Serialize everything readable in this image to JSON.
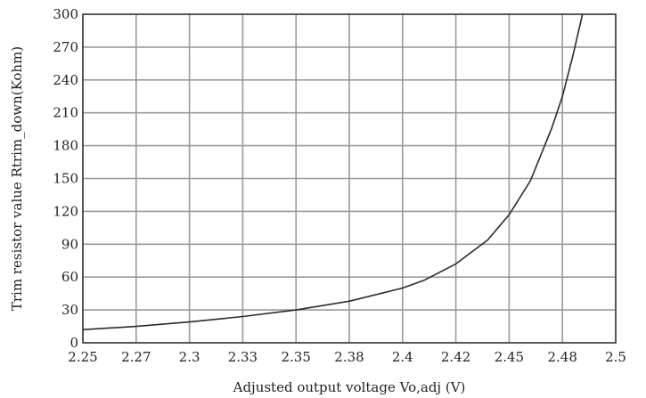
{
  "chart_data": {
    "type": "line",
    "title": "",
    "xlabel": "Adjusted output voltage Vo,adj (V)",
    "ylabel": "Trim resistor value Rtrim_down(Kohm)",
    "xlim": [
      2.25,
      2.5
    ],
    "ylim": [
      0,
      300
    ],
    "grid": true,
    "x_ticks": [
      2.25,
      2.275,
      2.3,
      2.325,
      2.35,
      2.375,
      2.4,
      2.425,
      2.45,
      2.475,
      2.5
    ],
    "x_tick_labels": [
      "2.25",
      "2.27",
      "2.3",
      "2.33",
      "2.35",
      "2.38",
      "2.4",
      "2.42",
      "2.45",
      "2.48",
      "2.5"
    ],
    "y_ticks": [
      0,
      30,
      60,
      90,
      120,
      150,
      180,
      210,
      240,
      270,
      300
    ],
    "y_tick_labels": [
      "0",
      "30",
      "60",
      "90",
      "120",
      "150",
      "180",
      "210",
      "240",
      "270",
      "300"
    ],
    "series": [
      {
        "name": "",
        "color": "#2a2a2a",
        "x": [
          2.25,
          2.275,
          2.3,
          2.325,
          2.35,
          2.375,
          2.4,
          2.41,
          2.425,
          2.44,
          2.45,
          2.46,
          2.47,
          2.475,
          2.48,
          2.483,
          2.485
        ],
        "y": [
          12,
          15,
          19,
          24,
          30,
          38,
          50,
          57,
          72,
          94,
          117,
          148,
          196,
          225,
          263,
          288,
          305
        ]
      }
    ]
  }
}
